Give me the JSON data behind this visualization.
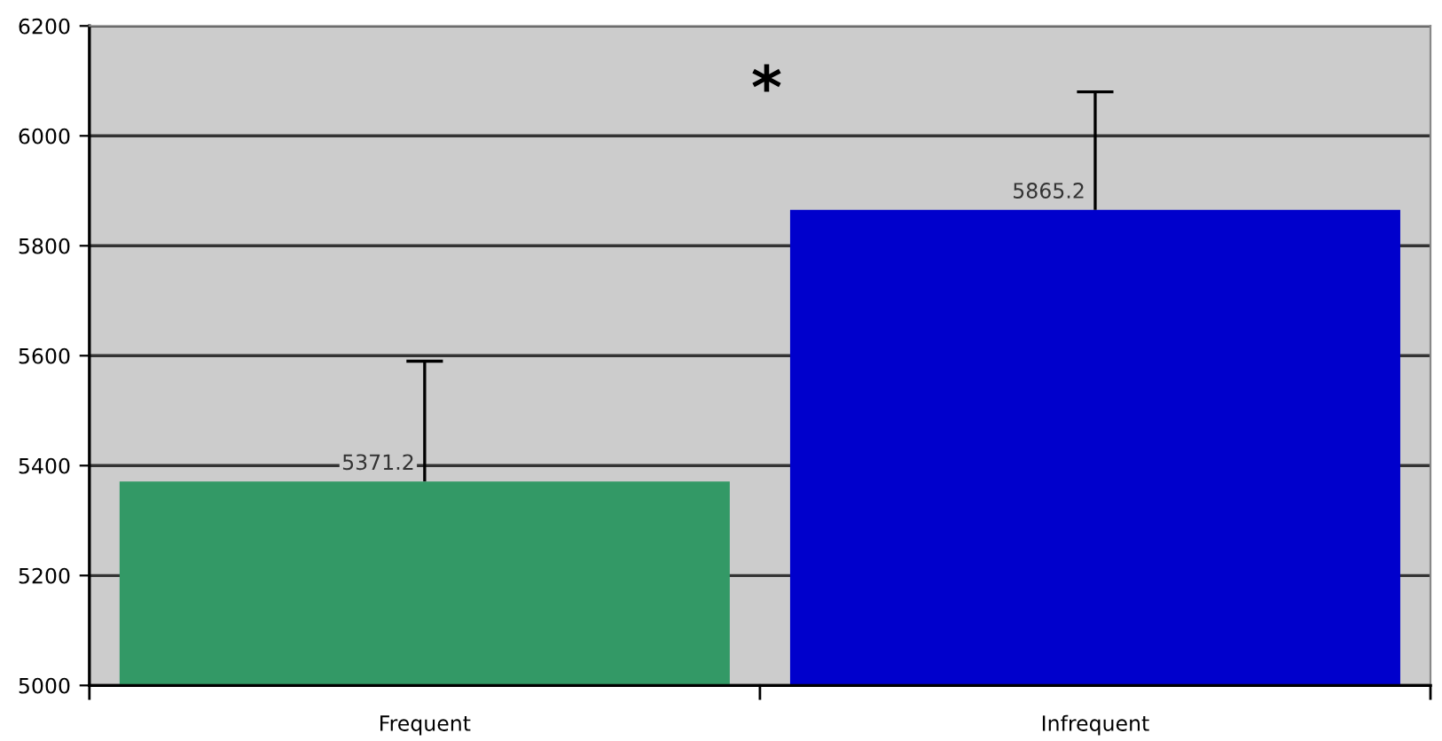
{
  "chart_data": {
    "type": "bar",
    "categories": [
      "Frequent",
      "Infrequent"
    ],
    "values": [
      5371.2,
      5865.2
    ],
    "colors": [
      "#339966",
      "#0000cc"
    ],
    "errors": [
      [
        5371.2,
        5590
      ],
      [
        5865.2,
        6080
      ]
    ],
    "ylim": [
      5000,
      6200
    ],
    "yticks": [
      5000,
      5200,
      5400,
      5600,
      5800,
      6000,
      6200
    ],
    "grid": "y",
    "data_labels": true,
    "annotations": [
      "*"
    ]
  }
}
